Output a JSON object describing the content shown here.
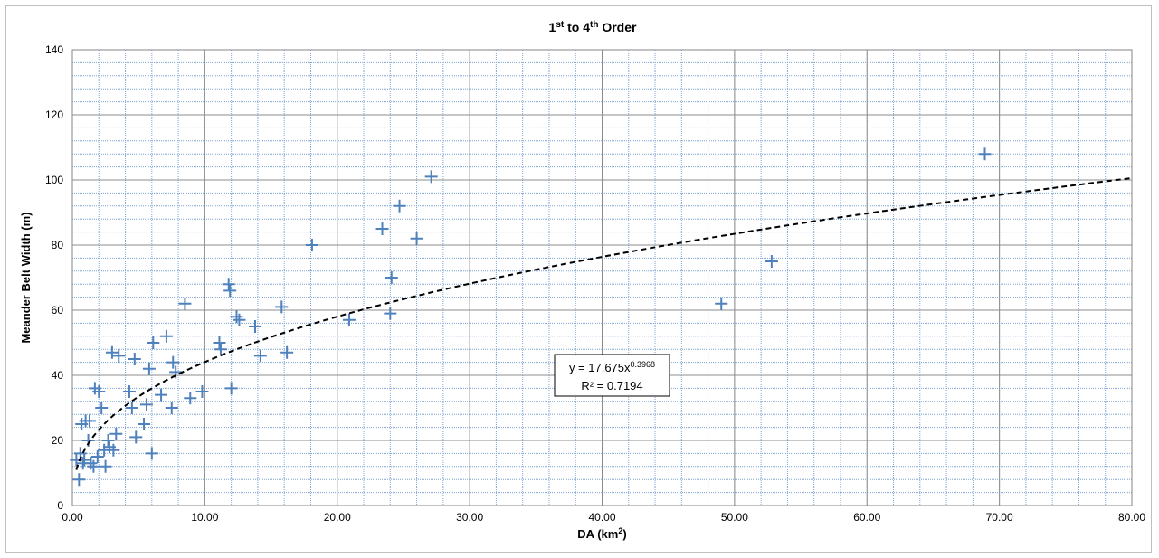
{
  "chart_data": {
    "type": "scatter",
    "title": {
      "parts": [
        {
          "t": "1"
        },
        {
          "t": "st",
          "sup": true
        },
        {
          "t": " to 4"
        },
        {
          "t": "th",
          "sup": true
        },
        {
          "t": " Order"
        }
      ]
    },
    "xlabel": {
      "parts": [
        {
          "t": "DA (km"
        },
        {
          "t": "2",
          "sup": true
        },
        {
          "t": ")"
        }
      ]
    },
    "ylabel": "Meander Belt Width (m)",
    "xlim": [
      0,
      80
    ],
    "ylim": [
      0,
      140
    ],
    "x_ticks": [
      "0.00",
      "10.00",
      "20.00",
      "30.00",
      "40.00",
      "50.00",
      "60.00",
      "70.00",
      "80.00"
    ],
    "y_ticks": [
      "0",
      "20",
      "40",
      "60",
      "80",
      "100",
      "120",
      "140"
    ],
    "grid": {
      "major": true,
      "minor": true
    },
    "marker": "plus",
    "marker_color": "#4f81bd",
    "trendline": {
      "type": "power",
      "a": 17.675,
      "b": 0.3968,
      "style": "dashed",
      "color": "#000000"
    },
    "equation": {
      "line1": {
        "parts": [
          {
            "t": "y = 17.675x"
          },
          {
            "t": "0.3968",
            "sup": true
          }
        ]
      },
      "line2": {
        "parts": [
          {
            "t": "R² = 0.7194"
          }
        ]
      }
    },
    "points": [
      [
        0.3,
        14
      ],
      [
        0.5,
        8
      ],
      [
        0.6,
        16
      ],
      [
        0.7,
        25
      ],
      [
        0.8,
        13
      ],
      [
        0.9,
        14
      ],
      [
        1.0,
        26
      ],
      [
        1.2,
        20
      ],
      [
        1.3,
        26
      ],
      [
        1.4,
        13
      ],
      [
        1.6,
        12
      ],
      [
        1.7,
        36
      ],
      [
        1.9,
        15
      ],
      [
        2.0,
        35
      ],
      [
        2.2,
        30
      ],
      [
        2.4,
        17
      ],
      [
        2.5,
        12
      ],
      [
        2.7,
        20
      ],
      [
        2.8,
        18
      ],
      [
        3.0,
        47
      ],
      [
        3.1,
        17
      ],
      [
        3.3,
        22
      ],
      [
        3.5,
        46
      ],
      [
        4.3,
        35
      ],
      [
        4.5,
        30
      ],
      [
        4.7,
        45
      ],
      [
        4.8,
        21
      ],
      [
        5.4,
        25
      ],
      [
        5.6,
        31
      ],
      [
        5.8,
        42
      ],
      [
        6.0,
        16
      ],
      [
        6.1,
        50
      ],
      [
        6.7,
        34
      ],
      [
        7.1,
        52
      ],
      [
        7.5,
        30
      ],
      [
        7.6,
        44
      ],
      [
        7.8,
        41
      ],
      [
        8.5,
        62
      ],
      [
        8.9,
        33
      ],
      [
        9.8,
        35
      ],
      [
        11.1,
        50
      ],
      [
        11.2,
        48
      ],
      [
        11.8,
        68
      ],
      [
        11.9,
        66
      ],
      [
        12.0,
        36
      ],
      [
        12.4,
        58
      ],
      [
        12.6,
        57
      ],
      [
        13.8,
        55
      ],
      [
        14.2,
        46
      ],
      [
        15.8,
        61
      ],
      [
        16.2,
        47
      ],
      [
        18.1,
        80
      ],
      [
        20.9,
        57
      ],
      [
        23.4,
        85
      ],
      [
        24.0,
        59
      ],
      [
        24.1,
        70
      ],
      [
        24.7,
        92
      ],
      [
        26.0,
        82
      ],
      [
        27.1,
        101
      ],
      [
        49.0,
        62
      ],
      [
        52.8,
        75
      ],
      [
        68.9,
        108
      ]
    ]
  }
}
